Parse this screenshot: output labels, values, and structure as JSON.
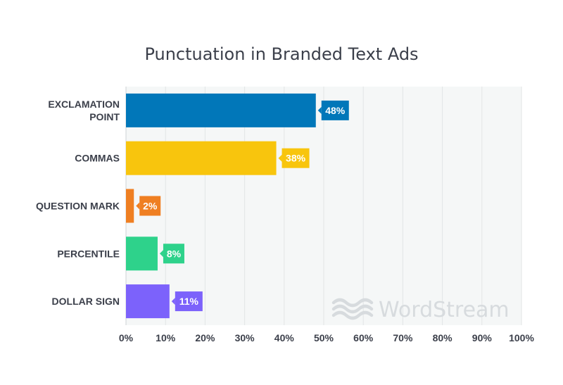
{
  "chart_data": {
    "type": "bar",
    "orientation": "horizontal",
    "title": "Punctuation in Branded Text Ads",
    "categories": [
      "EXCLAMATION POINT",
      "COMMAS",
      "QUESTION MARK",
      "PERCENTILE",
      "DOLLAR SIGN"
    ],
    "values": [
      48,
      38,
      2,
      8,
      11
    ],
    "data_labels": [
      "48%",
      "38%",
      "2%",
      "8%",
      "11%"
    ],
    "colors": [
      "#0177b9",
      "#f8c50d",
      "#ef7f22",
      "#2ed28b",
      "#7c62fb"
    ],
    "xlim": [
      0,
      100
    ],
    "x_ticks": [
      "0%",
      "10%",
      "20%",
      "30%",
      "40%",
      "50%",
      "60%",
      "70%",
      "80%",
      "90%",
      "100%"
    ],
    "xlabel": "",
    "ylabel": "",
    "grid": true,
    "legend": "none"
  },
  "watermark": {
    "text": "WordStream",
    "icon": "wave-icon",
    "color": "#d7dbde"
  },
  "colors": {
    "plot_background": "#f5f7f7",
    "gridline": "#e2e5e6",
    "text": "#3b3f4a"
  }
}
